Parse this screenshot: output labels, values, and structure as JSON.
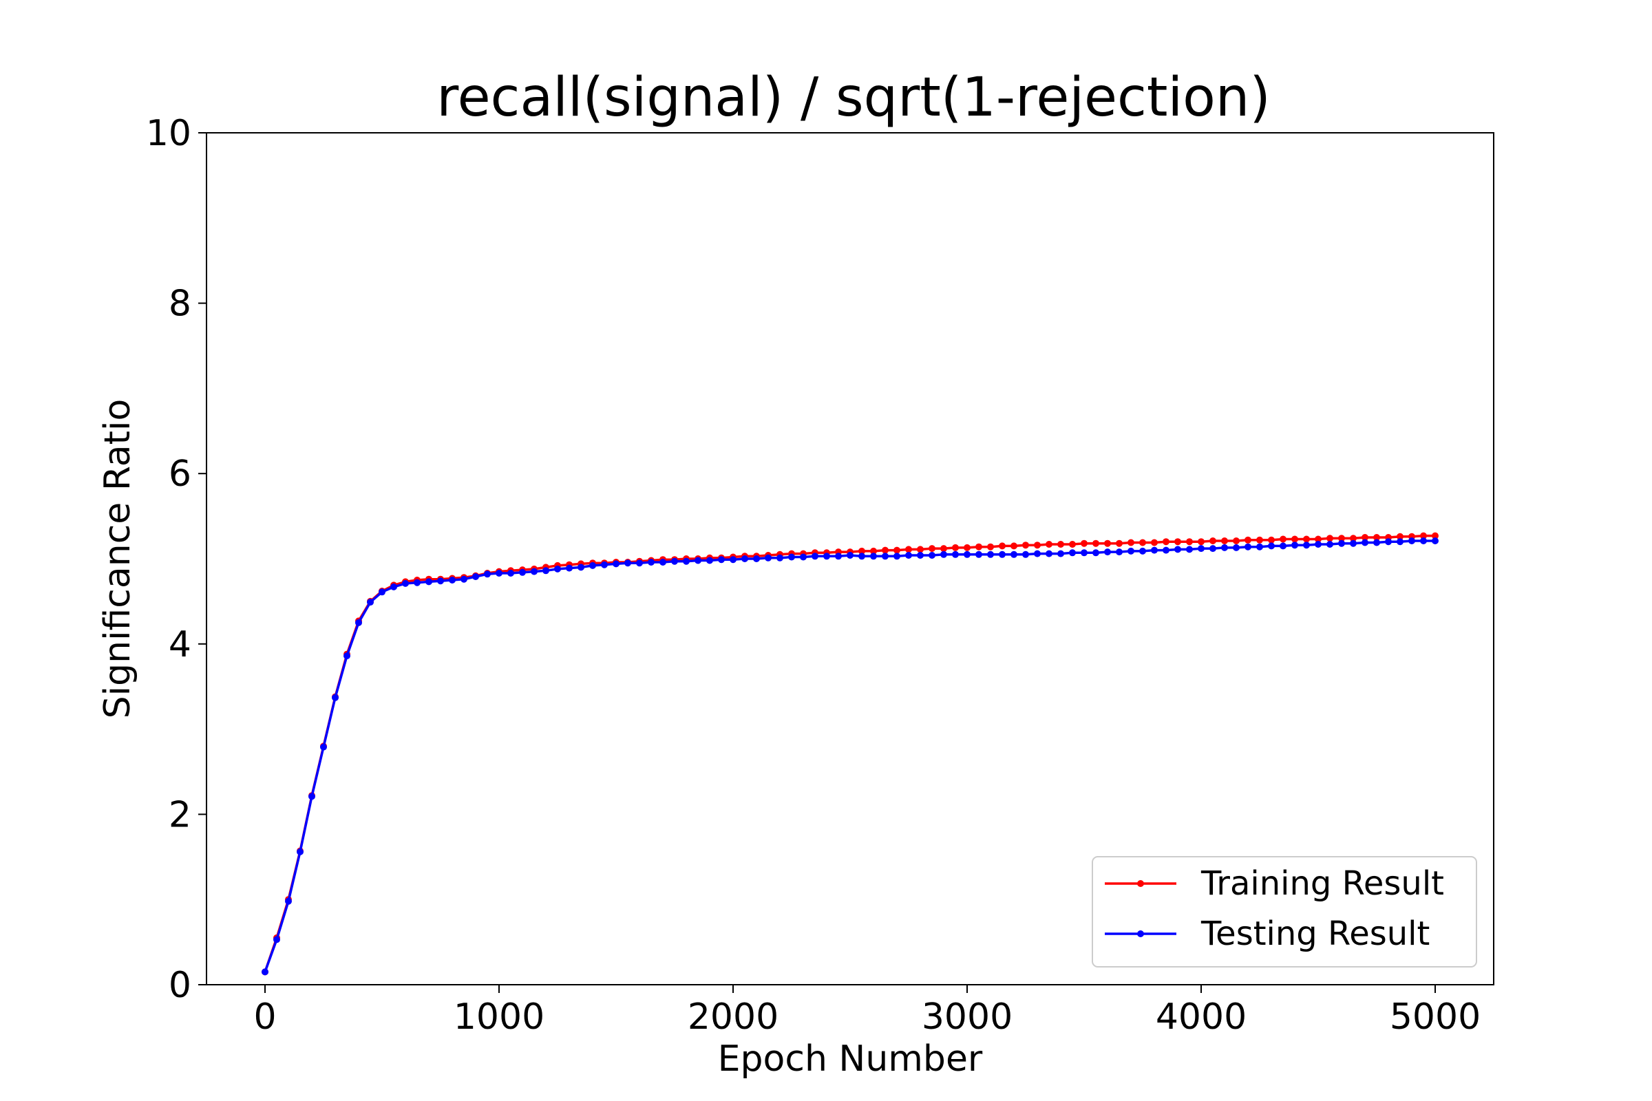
{
  "colors": {
    "training": "#ff0000",
    "testing": "#0000ff",
    "axis": "#000000",
    "legend_border": "#cccccc"
  },
  "chart_data": {
    "type": "line",
    "title": "recall(signal) / sqrt(1-rejection)",
    "xlabel": "Epoch Number",
    "ylabel": "Significance Ratio",
    "xlim": [
      -250,
      5250
    ],
    "ylim": [
      0,
      10
    ],
    "xticks": [
      0,
      1000,
      2000,
      3000,
      4000,
      5000
    ],
    "yticks": [
      0,
      2,
      4,
      6,
      8,
      10
    ],
    "xtick_labels": [
      "0",
      "1000",
      "2000",
      "3000",
      "4000",
      "5000"
    ],
    "ytick_labels": [
      "0",
      "2",
      "4",
      "6",
      "8",
      "10"
    ],
    "grid": false,
    "legend": "lower-right",
    "marker": "dot",
    "x": [
      0,
      50,
      100,
      150,
      200,
      250,
      300,
      350,
      400,
      450,
      500,
      550,
      600,
      650,
      700,
      750,
      800,
      850,
      900,
      950,
      1000,
      1050,
      1100,
      1150,
      1200,
      1250,
      1300,
      1350,
      1400,
      1450,
      1500,
      1550,
      1600,
      1650,
      1700,
      1750,
      1800,
      1850,
      1900,
      1950,
      2000,
      2050,
      2100,
      2150,
      2200,
      2250,
      2300,
      2350,
      2400,
      2450,
      2500,
      2550,
      2600,
      2650,
      2700,
      2750,
      2800,
      2850,
      2900,
      2950,
      3000,
      3050,
      3100,
      3150,
      3200,
      3250,
      3300,
      3350,
      3400,
      3450,
      3500,
      3550,
      3600,
      3650,
      3700,
      3750,
      3800,
      3850,
      3900,
      3950,
      4000,
      4050,
      4100,
      4150,
      4200,
      4250,
      4300,
      4350,
      4400,
      4450,
      4500,
      4550,
      4600,
      4650,
      4700,
      4750,
      4800,
      4850,
      4900,
      4950,
      5000
    ],
    "series": [
      {
        "name": "Training Result",
        "color": "#ff0000",
        "values": [
          0.15,
          0.55,
          1.0,
          1.57,
          2.22,
          2.8,
          3.38,
          3.88,
          4.27,
          4.5,
          4.62,
          4.69,
          4.73,
          4.75,
          4.76,
          4.76,
          4.77,
          4.78,
          4.8,
          4.83,
          4.85,
          4.86,
          4.87,
          4.88,
          4.9,
          4.92,
          4.93,
          4.94,
          4.95,
          4.95,
          4.96,
          4.96,
          4.97,
          4.98,
          4.99,
          4.99,
          5.0,
          5.0,
          5.01,
          5.01,
          5.02,
          5.03,
          5.03,
          5.04,
          5.05,
          5.06,
          5.06,
          5.07,
          5.07,
          5.08,
          5.08,
          5.09,
          5.09,
          5.1,
          5.1,
          5.11,
          5.11,
          5.12,
          5.12,
          5.13,
          5.13,
          5.14,
          5.14,
          5.15,
          5.15,
          5.16,
          5.16,
          5.17,
          5.17,
          5.17,
          5.18,
          5.18,
          5.18,
          5.18,
          5.19,
          5.19,
          5.19,
          5.2,
          5.2,
          5.2,
          5.2,
          5.21,
          5.21,
          5.21,
          5.22,
          5.22,
          5.22,
          5.23,
          5.23,
          5.23,
          5.23,
          5.24,
          5.24,
          5.24,
          5.25,
          5.25,
          5.25,
          5.26,
          5.26,
          5.27,
          5.27
        ]
      },
      {
        "name": "Testing Result",
        "color": "#0000ff",
        "values": [
          0.15,
          0.53,
          0.98,
          1.56,
          2.21,
          2.79,
          3.37,
          3.86,
          4.25,
          4.49,
          4.61,
          4.67,
          4.71,
          4.72,
          4.73,
          4.74,
          4.75,
          4.76,
          4.79,
          4.82,
          4.83,
          4.83,
          4.84,
          4.85,
          4.86,
          4.88,
          4.89,
          4.9,
          4.92,
          4.93,
          4.94,
          4.95,
          4.95,
          4.96,
          4.96,
          4.97,
          4.97,
          4.98,
          4.98,
          4.99,
          4.99,
          5.0,
          5.0,
          5.01,
          5.01,
          5.02,
          5.02,
          5.03,
          5.03,
          5.03,
          5.04,
          5.03,
          5.03,
          5.03,
          5.03,
          5.04,
          5.04,
          5.04,
          5.05,
          5.05,
          5.05,
          5.05,
          5.05,
          5.05,
          5.05,
          5.05,
          5.06,
          5.06,
          5.06,
          5.07,
          5.07,
          5.07,
          5.08,
          5.08,
          5.09,
          5.09,
          5.1,
          5.1,
          5.11,
          5.11,
          5.12,
          5.12,
          5.13,
          5.13,
          5.14,
          5.14,
          5.15,
          5.15,
          5.16,
          5.16,
          5.17,
          5.17,
          5.18,
          5.18,
          5.19,
          5.19,
          5.2,
          5.2,
          5.21,
          5.21,
          5.21
        ]
      }
    ]
  }
}
